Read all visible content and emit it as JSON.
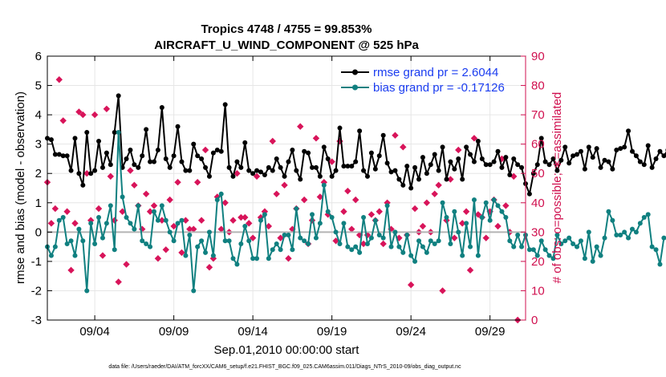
{
  "chart_data": {
    "type": "line",
    "title": "Tropics 4748 / 4755 = 99.853%",
    "subtitle": "AIRCRAFT_U_WIND_COMPONENT @ 525 hPa",
    "xlabel": "Sep.01,2010 00:00:00 start",
    "ylabel": "rmse and bias (model - observation)",
    "y2label": "# of obs: o=possible; ∗=assimilated",
    "footer": "data file: /Users/raeder/DAI/ATM_forcXX/CAM6_setup/f.e21.FHIST_BGC.f09_025.CAM6assim.011/Diags_NTrS_2010-09/obs_diag_output.nc",
    "xlim": [
      0.5,
      30.75
    ],
    "ylim": [
      -3,
      6
    ],
    "y2lim": [
      0,
      90
    ],
    "x_ticks": [
      3.5,
      8.5,
      13.5,
      18.5,
      23.5,
      28.5
    ],
    "x_tick_labels": [
      "09/04",
      "09/09",
      "09/14",
      "09/19",
      "09/24",
      "09/29"
    ],
    "y_ticks": [
      -3,
      -2,
      -1,
      0,
      1,
      2,
      3,
      4,
      5,
      6
    ],
    "y_tick_labels": [
      "-3",
      "-2",
      "-1",
      "0",
      "1",
      "2",
      "3",
      "4",
      "5",
      "6"
    ],
    "y2_ticks": [
      0,
      10,
      20,
      30,
      40,
      50,
      60,
      70,
      80,
      90
    ],
    "y2_tick_labels": [
      "0",
      "10",
      "20",
      "30",
      "40",
      "50",
      "60",
      "70",
      "80",
      "90"
    ],
    "x_start": 0.5,
    "x_step": 0.25,
    "series": [
      {
        "name": "rmse",
        "legend": "rmse grand pr = 2.6044",
        "color": "#000000",
        "values": [
          3.2,
          3.15,
          2.65,
          2.65,
          2.6,
          2.6,
          2.1,
          3.2,
          2.0,
          1.6,
          3.4,
          2.0,
          2.1,
          3.1,
          2.2,
          2.7,
          2.3,
          3.4,
          4.65,
          2.2,
          2.5,
          2.8,
          2.3,
          2.2,
          2.6,
          3.5,
          2.4,
          2.4,
          2.8,
          4.25,
          2.5,
          2.2,
          2.6,
          3.6,
          2.4,
          2.1,
          2.1,
          3.0,
          2.6,
          2.5,
          2.2,
          1.9,
          2.7,
          2.8,
          2.75,
          4.35,
          2.2,
          1.9,
          2.4,
          2.2,
          3.05,
          2.1,
          2.0,
          2.1,
          2.05,
          1.95,
          2.2,
          2.1,
          2.5,
          2.2,
          1.9,
          2.4,
          2.8,
          2.1,
          1.8,
          2.75,
          2.7,
          2.2,
          2.2,
          1.9,
          2.9,
          2.5,
          1.9,
          2.1,
          3.55,
          2.25,
          2.25,
          2.25,
          2.4,
          3.45,
          2.1,
          1.9,
          2.7,
          2.15,
          2.6,
          3.3,
          2.35,
          2.05,
          2.1,
          1.8,
          1.6,
          2.25,
          1.5,
          2.2,
          1.8,
          2.55,
          2.0,
          2.3,
          2.65,
          2.1,
          2.9,
          1.8,
          2.4,
          2.15,
          2.5,
          1.8,
          2.9,
          2.65,
          2.4,
          3.1,
          2.5,
          2.3,
          2.3,
          2.4,
          2.75,
          2.2,
          2.55,
          1.95,
          2.5,
          2.3,
          2.2,
          1.65,
          1.3,
          2.0,
          2.3,
          3.2,
          2.4,
          2.3,
          2.5,
          2.1,
          2.45,
          2.9,
          2.35,
          2.6,
          2.65,
          2.75,
          2.15,
          2.9,
          2.55,
          2.85,
          2.2,
          2.45,
          2.4,
          2.15,
          2.8,
          2.85,
          2.9,
          3.45,
          2.75,
          2.6,
          2.4,
          2.3,
          2.95,
          2.2,
          2.5,
          2.75,
          2.6,
          2.8,
          2.9,
          2.2,
          2.0,
          1.95
        ]
      },
      {
        "name": "bias",
        "legend": "bias grand pr = -0.17126",
        "color": "#108080",
        "values": [
          -0.5,
          -0.8,
          -0.5,
          0.4,
          0.5,
          -0.4,
          -0.3,
          -0.8,
          0.1,
          -0.3,
          -2.0,
          0.3,
          -0.4,
          0.5,
          -0.2,
          0.3,
          0.9,
          -0.6,
          3.4,
          1.2,
          0.5,
          0.3,
          0.1,
          0.9,
          -0.3,
          -0.4,
          -0.5,
          0.7,
          0.4,
          0.9,
          0.4,
          0.0,
          -0.3,
          0.3,
          0.4,
          -0.8,
          -0.1,
          -2.0,
          -0.5,
          -0.3,
          -0.7,
          0.0,
          -0.8,
          1.1,
          1.3,
          -0.3,
          -0.3,
          -0.9,
          -1.1,
          -0.4,
          0.2,
          -0.3,
          -0.9,
          -0.9,
          0.4,
          0.6,
          -0.9,
          -0.6,
          -0.4,
          -0.6,
          -0.1,
          -0.1,
          -0.6,
          0.8,
          -0.2,
          -0.3,
          -0.4,
          0.6,
          -0.2,
          0.3,
          1.6,
          0.7,
          0.5,
          0.0,
          -0.4,
          0.3,
          -0.5,
          -0.6,
          -0.5,
          -0.7,
          0.5,
          -0.4,
          -0.2,
          0.4,
          -0.1,
          -0.2,
          0.9,
          -0.5,
          0.0,
          -0.5,
          -0.7,
          -0.1,
          -0.8,
          -1.0,
          -0.3,
          -0.5,
          -0.7,
          -0.3,
          -0.4,
          -0.3,
          1.0,
          0.5,
          -0.4,
          0.7,
          0.0,
          -0.8,
          0.3,
          -0.5,
          1.1,
          -0.8,
          0.5,
          1.0,
          0.4,
          1.1,
          0.9,
          0.7,
          0.5,
          -0.3,
          -0.5,
          -0.1,
          -0.5,
          -0.1,
          -0.6,
          -0.6,
          -0.8,
          -0.3,
          -0.6,
          -0.8,
          -0.9,
          -0.1,
          -0.4,
          -0.3,
          -0.2,
          -0.4,
          -0.5,
          -0.3,
          -0.9,
          0.0,
          -1.0,
          -0.5,
          -0.8,
          -0.2,
          0.7,
          0.4,
          -0.1,
          -0.1,
          0.0,
          -0.2,
          0.1,
          0.0,
          0.3,
          0.5,
          0.6,
          -0.5,
          -0.6,
          -1.1,
          -0.2,
          -0.2
        ]
      }
    ],
    "zero_line": 0,
    "obs_assimilated_x": [
      0.5,
      0.75,
      1.0,
      1.25,
      1.5,
      1.75,
      2.0,
      2.25,
      2.5,
      2.75,
      3.0,
      3.25,
      3.5,
      3.75,
      4.0,
      4.25,
      4.5,
      4.75,
      5.0,
      5.25,
      5.5,
      5.75,
      6.0,
      6.25,
      6.5,
      6.75,
      7.0,
      7.25,
      7.5,
      7.75,
      8.0,
      8.25,
      8.5,
      8.75,
      9.0,
      9.25,
      9.5,
      9.75,
      10.0,
      10.25,
      10.5,
      10.75,
      11.0,
      11.25,
      11.5,
      11.75,
      12.0,
      12.25,
      12.5,
      12.75,
      13.0,
      13.25,
      13.5,
      13.75,
      14.0,
      14.25,
      14.5,
      14.75,
      15.0,
      15.25,
      15.5,
      15.75,
      16.0,
      16.25,
      16.5,
      16.75,
      17.0,
      17.25,
      17.5,
      17.75,
      18.0,
      18.25,
      18.5,
      18.75,
      19.0,
      19.25,
      19.5,
      19.75,
      20.0,
      20.25,
      20.5,
      20.75,
      21.0,
      21.25,
      21.5,
      21.75,
      22.0,
      22.25,
      22.5,
      22.75,
      23.0,
      23.25,
      23.5,
      23.75,
      24.0,
      24.25,
      24.5,
      24.75,
      25.0,
      25.25,
      25.5,
      25.75,
      26.0,
      26.25,
      26.5,
      26.75,
      27.0,
      27.25,
      27.5,
      27.75,
      28.0,
      28.25,
      28.5,
      28.75,
      29.0,
      29.25,
      29.5,
      29.75,
      30.0,
      30.25,
      30.5,
      30.75
    ],
    "obs_assimilated": [
      47,
      33,
      38,
      82,
      68,
      37,
      17,
      33,
      71,
      70,
      50,
      34,
      70,
      38,
      22,
      72,
      49,
      34,
      13,
      37,
      19,
      51,
      46,
      39,
      31,
      43,
      37,
      39,
      21,
      34,
      24,
      41,
      32,
      47,
      23,
      34,
      31,
      31,
      47,
      34,
      58,
      18,
      21,
      42,
      31,
      40,
      30,
      34,
      50,
      35,
      35,
      33,
      28,
      49,
      35,
      37,
      32,
      61,
      43,
      28,
      46,
      21,
      31,
      38,
      66,
      41,
      26,
      34,
      62,
      42,
      47,
      36,
      54,
      27,
      61,
      37,
      44,
      31,
      41,
      29,
      26,
      29,
      36,
      34,
      37,
      26,
      40,
      31,
      63,
      28,
      59,
      29,
      12,
      38,
      30,
      32,
      40,
      30,
      43,
      46,
      10,
      34,
      48,
      28,
      58,
      33,
      37,
      17,
      62,
      36,
      35,
      28,
      37,
      41,
      32,
      55,
      39,
      30,
      49,
      0
    ]
  }
}
